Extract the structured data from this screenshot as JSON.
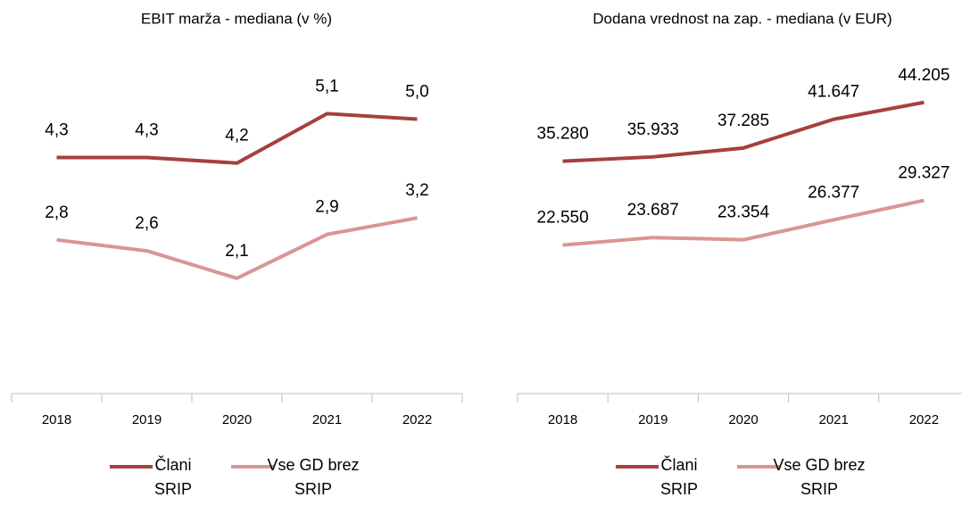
{
  "chart_data": [
    {
      "type": "line",
      "title": "EBIT marža - mediana (v %)",
      "categories": [
        "2018",
        "2019",
        "2020",
        "2021",
        "2022"
      ],
      "series": [
        {
          "name": "Člani SRIP",
          "color": "#a5403f",
          "values": [
            4.3,
            4.3,
            4.2,
            5.1,
            5.0
          ],
          "value_labels": [
            "4,3",
            "4,3",
            "4,2",
            "5,1",
            "5,0"
          ]
        },
        {
          "name": "Vse GD brez SRIP",
          "color": "#d99594",
          "values": [
            2.8,
            2.6,
            2.1,
            2.9,
            3.2
          ],
          "value_labels": [
            "2,8",
            "2,6",
            "2,1",
            "2,9",
            "3,2"
          ]
        }
      ],
      "ylim": [
        0,
        6
      ],
      "legend": "bottom"
    },
    {
      "type": "line",
      "title": "Dodana vrednost na zap. - mediana (v EUR)",
      "categories": [
        "2018",
        "2019",
        "2020",
        "2021",
        "2022"
      ],
      "series": [
        {
          "name": "Člani SRIP",
          "color": "#a5403f",
          "values": [
            35280,
            35933,
            37285,
            41647,
            44205
          ],
          "value_labels": [
            "35.280",
            "35.933",
            "37.285",
            "41.647",
            "44.205"
          ]
        },
        {
          "name": "Vse GD brez SRIP",
          "color": "#d99594",
          "values": [
            22550,
            23687,
            23354,
            26377,
            29327
          ],
          "value_labels": [
            "22.550",
            "23.687",
            "23.354",
            "26.377",
            "29.327"
          ]
        }
      ],
      "ylim": [
        0,
        50000
      ],
      "legend": "bottom"
    }
  ]
}
